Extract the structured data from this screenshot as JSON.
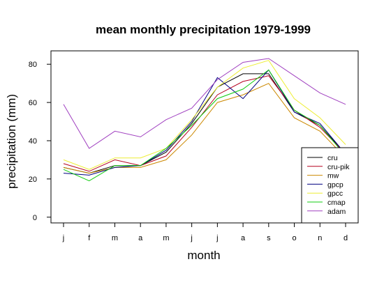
{
  "chart_data": {
    "type": "line",
    "title": "mean monthly precipitation 1979-1999",
    "xlabel": "month",
    "ylabel": "precipitation (mm)",
    "categories": [
      "j",
      "f",
      "m",
      "a",
      "m",
      "j",
      "j",
      "a",
      "s",
      "o",
      "n",
      "d"
    ],
    "yticks": [
      "0",
      "20",
      "40",
      "60",
      "80"
    ],
    "ylim": [
      -3,
      87
    ],
    "grid": false,
    "legend_position": "bottom-right",
    "series": [
      {
        "name": "cru",
        "color": "#000000",
        "values": [
          26,
          23,
          27,
          27,
          34,
          49,
          68,
          75,
          75,
          55,
          48,
          33
        ]
      },
      {
        "name": "cru-pik",
        "color": "#b5001e",
        "values": [
          28,
          24,
          30,
          27,
          32,
          47,
          64,
          71,
          74,
          56,
          47,
          33
        ]
      },
      {
        "name": "mw",
        "color": "#cc8800",
        "values": [
          26,
          23,
          26,
          26,
          30,
          43,
          60,
          64,
          70,
          52,
          45,
          31
        ]
      },
      {
        "name": "gpcp",
        "color": "#000080",
        "values": [
          23,
          22,
          26,
          27,
          35,
          50,
          73,
          62,
          77,
          55,
          49,
          33
        ]
      },
      {
        "name": "gpcc",
        "color": "#eeee33",
        "values": [
          30,
          25,
          31,
          31,
          36,
          51,
          68,
          78,
          82,
          62,
          52,
          38
        ]
      },
      {
        "name": "cmap",
        "color": "#11cc11",
        "values": [
          25,
          19,
          27,
          27,
          36,
          48,
          62,
          67,
          77,
          56,
          48,
          32
        ]
      },
      {
        "name": "adam",
        "color": "#a040c0",
        "values": [
          59,
          36,
          45,
          42,
          51,
          57,
          72,
          81,
          83,
          74,
          65,
          59
        ]
      }
    ]
  }
}
